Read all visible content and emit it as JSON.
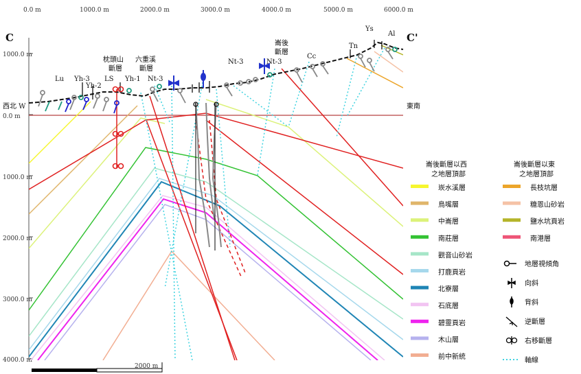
{
  "section": {
    "start_label": "C",
    "end_label": "C'"
  },
  "top_ticks": [
    "0.0 m",
    "1000.0 m",
    "2000.0 m",
    "3000.0 m",
    "4000.0 m",
    "5000.0 m",
    "6000.0 m"
  ],
  "left_ticks": [
    "1000.0 m",
    "0.0 m",
    "1000.0 m",
    "2000.0 m",
    "3000.0 m",
    "4000.0 m"
  ],
  "direction": {
    "west": "西北 W",
    "east": "東南"
  },
  "scale_bar": {
    "label": "2000 m"
  },
  "surface_labels": [
    {
      "id": "lu",
      "text": "Lu"
    },
    {
      "id": "yh3",
      "text": "Yh-3"
    },
    {
      "id": "yh2",
      "text": "Yh-2"
    },
    {
      "id": "ls",
      "text": "LS"
    },
    {
      "id": "yh1",
      "text": "Yh-1"
    },
    {
      "id": "nt3a",
      "text": "Nt-3"
    },
    {
      "id": "nt3b",
      "text": "Nt-3"
    },
    {
      "id": "nt3c",
      "text": "Nt-3"
    },
    {
      "id": "cc",
      "text": "Cc"
    },
    {
      "id": "tn",
      "text": "Tn"
    },
    {
      "id": "ys",
      "text": "Ys"
    },
    {
      "id": "al",
      "text": "Al"
    }
  ],
  "fault_labels": [
    {
      "id": "zhentoushan",
      "lines": [
        "枕頭山",
        "斷層"
      ]
    },
    {
      "id": "liuchongxi",
      "lines": [
        "六重溪",
        "斷層"
      ]
    },
    {
      "id": "qihou",
      "lines": [
        "崙後",
        "斷層"
      ]
    }
  ],
  "legend": {
    "west_title": [
      "崙後斷層以西",
      "之地層頂部"
    ],
    "east_title": [
      "崙後斷層以東",
      "之地層頂部"
    ],
    "west_items": [
      {
        "label": "崁水溪層",
        "color": "#f6f62e"
      },
      {
        "label": "鳥嘴層",
        "color": "#e0b56a"
      },
      {
        "label": "中崙層",
        "color": "#dcf27a"
      },
      {
        "label": "南莊層",
        "color": "#33c233"
      },
      {
        "label": "觀音山砂岩",
        "color": "#a6e6c8"
      },
      {
        "label": "打鹿頁岩",
        "color": "#a6d8ec"
      },
      {
        "label": "北寮層",
        "color": "#1f85b5"
      },
      {
        "label": "石底層",
        "color": "#f2c4f2"
      },
      {
        "label": "碧靈頁岩",
        "color": "#ee22ee"
      },
      {
        "label": "木山層",
        "color": "#b6b2ee"
      },
      {
        "label": "前中新統",
        "color": "#f2ae92"
      }
    ],
    "east_items": [
      {
        "label": "長枝坑層",
        "color": "#eca52a"
      },
      {
        "label": "糖恩山砂岩",
        "color": "#f5c2a6"
      },
      {
        "label": "鹽水坑頁岩",
        "color": "#b5b52a"
      },
      {
        "label": "南港層",
        "color": "#ee5577"
      }
    ],
    "symbols": [
      {
        "label": "地層視傾角",
        "icon": "dip-symbol"
      },
      {
        "label": "向斜",
        "icon": "syncline-symbol"
      },
      {
        "label": "背斜",
        "icon": "anticline-symbol"
      },
      {
        "label": "逆斷層",
        "icon": "thrust-fault-symbol"
      },
      {
        "label": "右移斷層",
        "icon": "dextral-fault-symbol"
      },
      {
        "label": "軸線",
        "icon": "axis-line-symbol"
      }
    ]
  }
}
